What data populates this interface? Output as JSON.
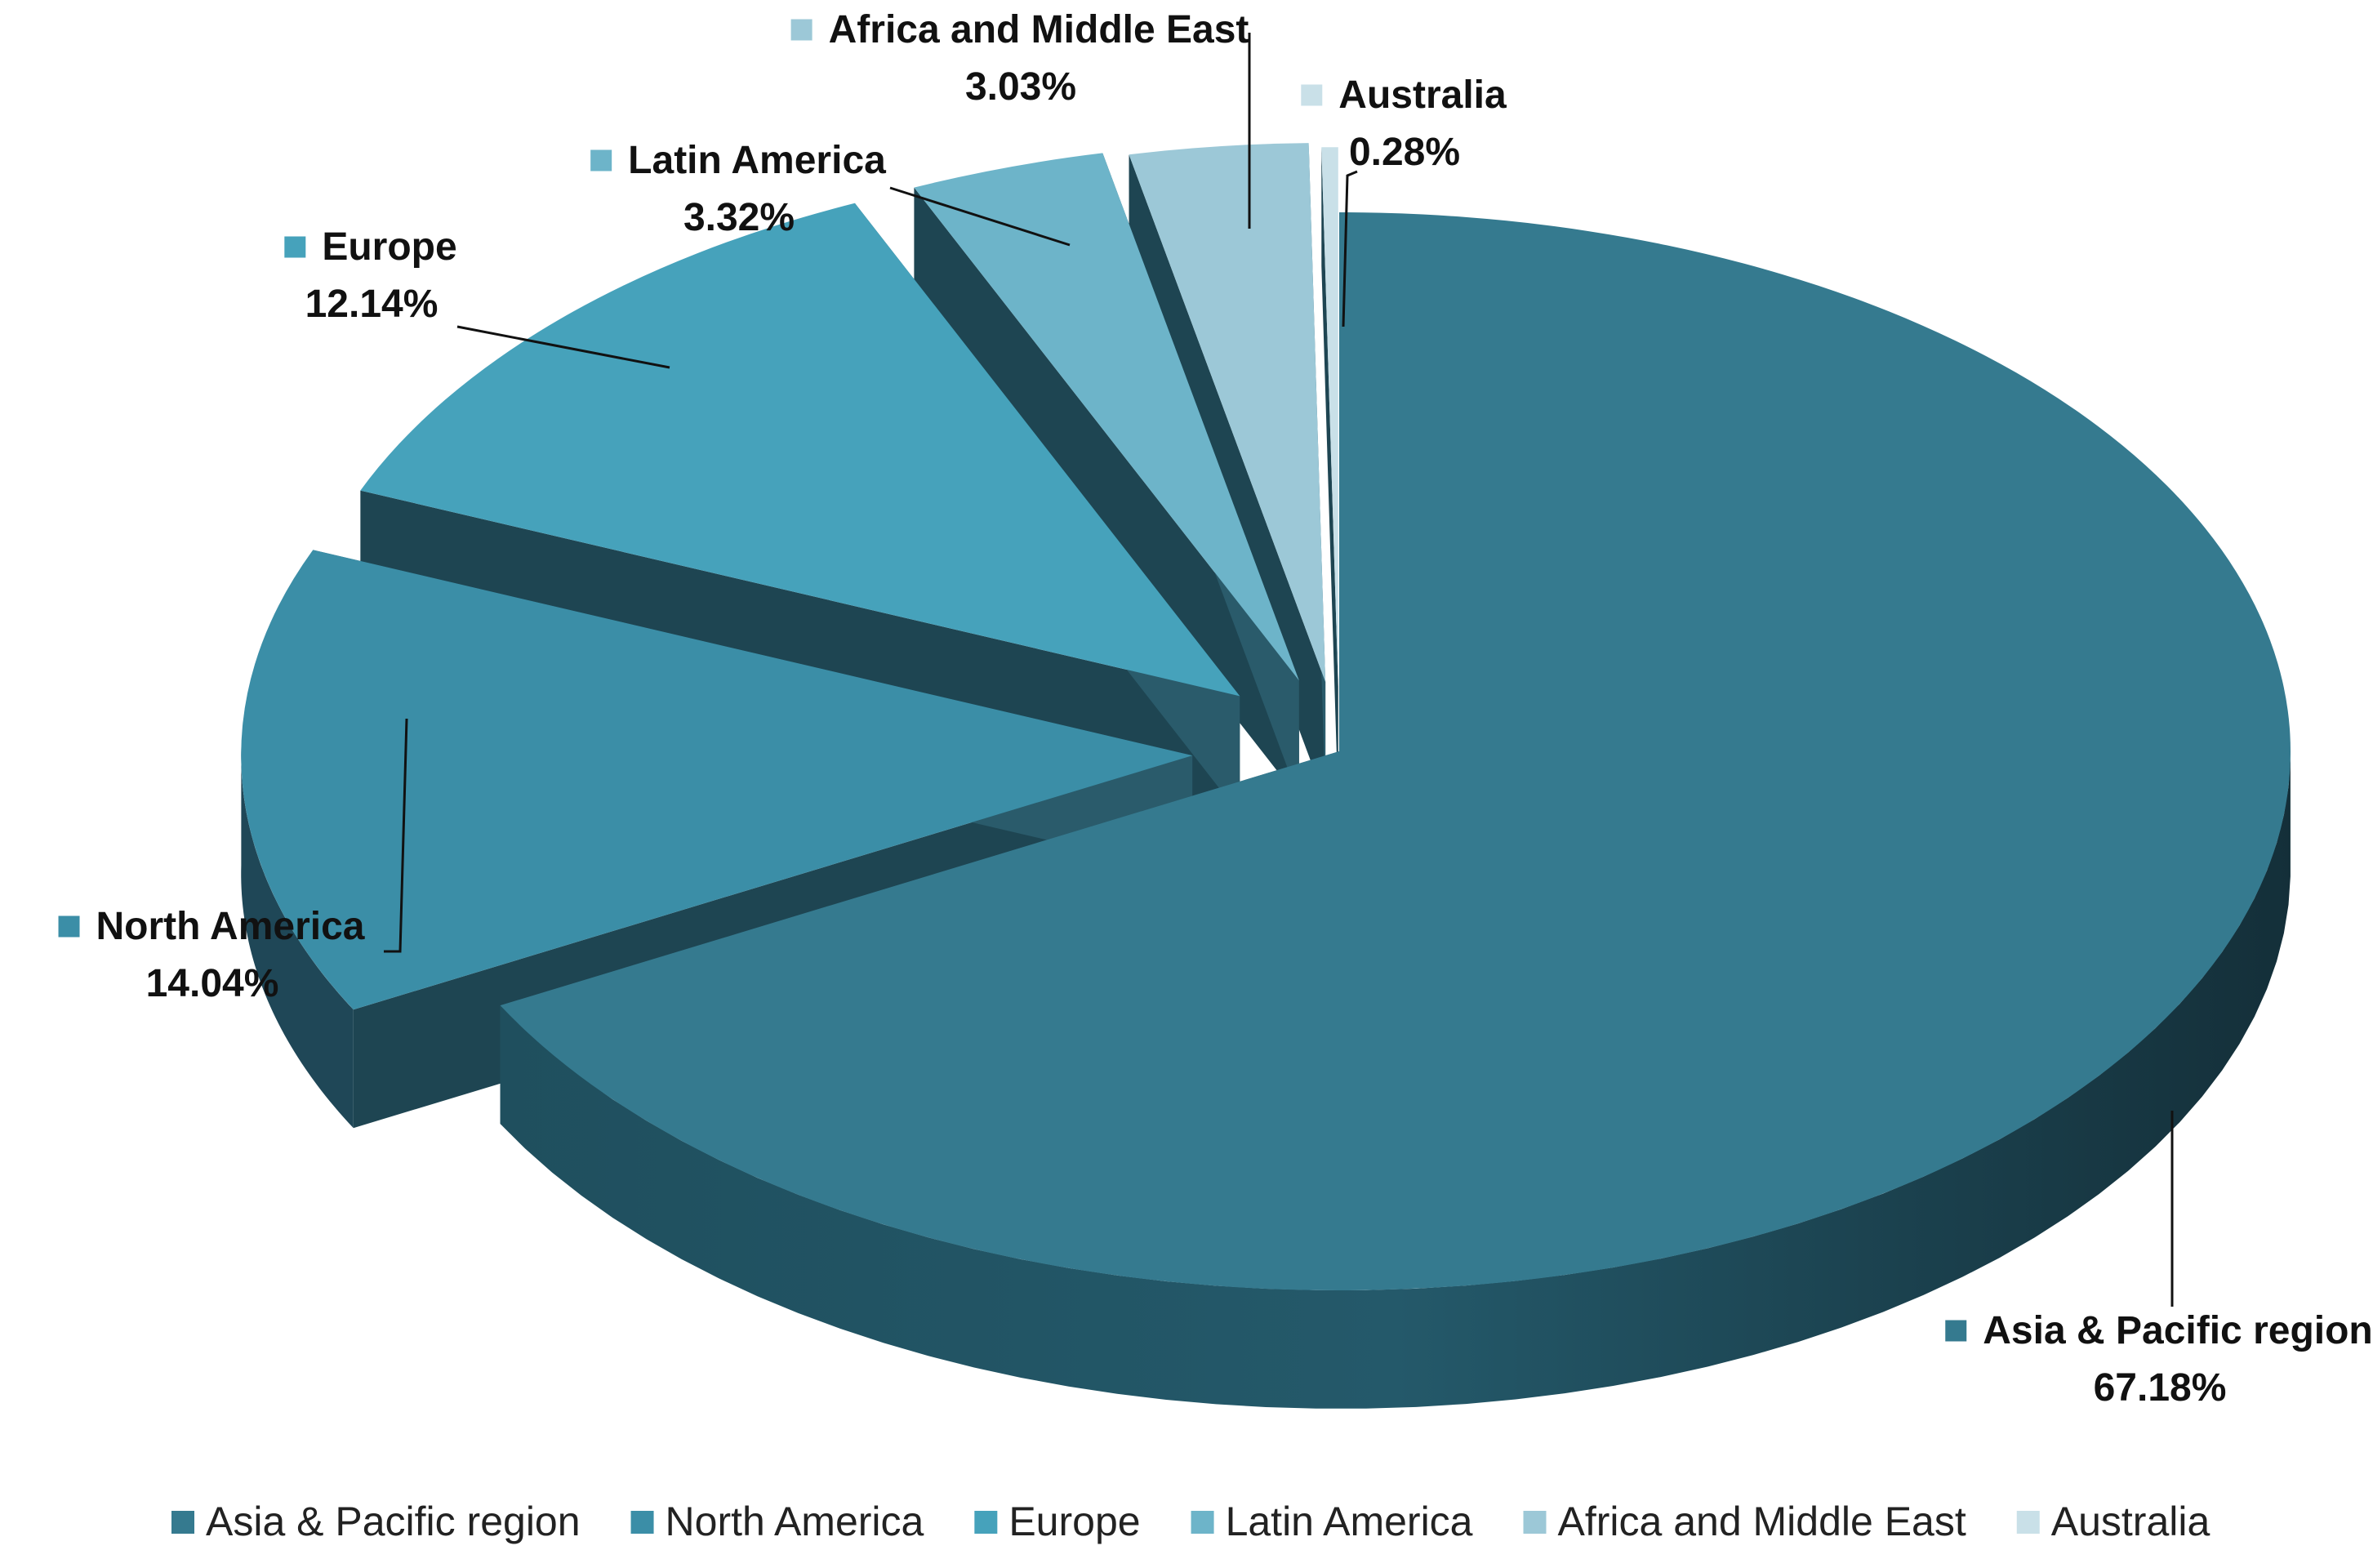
{
  "chart_data": {
    "type": "pie",
    "title": "",
    "categories": [
      "Asia & Pacific region",
      "North America",
      "Europe",
      "Latin America",
      "Africa and Middle East",
      "Australia"
    ],
    "values": [
      67.18,
      14.04,
      12.14,
      3.32,
      3.03,
      0.28
    ],
    "value_labels": [
      "67.18%",
      "14.04%",
      "12.14%",
      "3.32%",
      "3.03%",
      "0.28%"
    ],
    "colors": [
      "#357a8f",
      "#3b8ea7",
      "#46a2bb",
      "#6db4c9",
      "#9cc8d7",
      "#c9e0e8"
    ],
    "style": "3d-exploded",
    "legend": {
      "position": "bottom",
      "entries": [
        "Asia & Pacific region",
        "North America",
        "Europe",
        "Latin America",
        "Africa and Middle East",
        "Australia"
      ]
    }
  }
}
